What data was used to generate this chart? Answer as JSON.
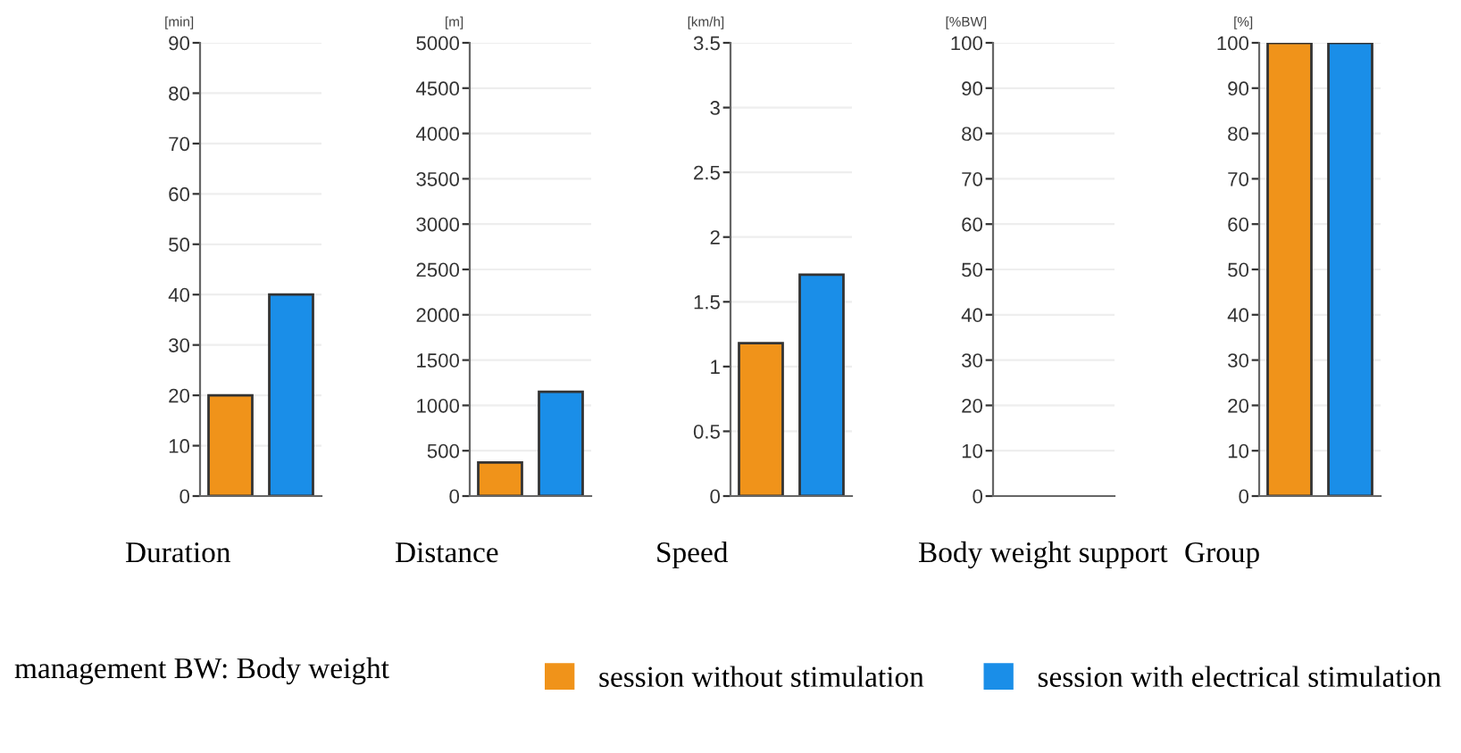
{
  "chart_data": [
    {
      "type": "bar",
      "xlabel": "Duration",
      "ylabel": "[min]",
      "categories": [
        null,
        null
      ],
      "ylim": [
        0,
        90
      ],
      "yticks": [
        0,
        10,
        20,
        30,
        40,
        50,
        60,
        70,
        80,
        90
      ],
      "grid": "y",
      "legend": "bottom",
      "annotations": [
        "management BW: Body weight"
      ],
      "series": [
        {
          "name": "session without stimulation",
          "color": "#f0931a",
          "values": [
            20,
            null
          ]
        },
        {
          "name": "session with electrical stimulation",
          "color": "#1a8ee8",
          "values": [
            null,
            40
          ]
        }
      ]
    },
    {
      "type": "bar",
      "xlabel": "Distance",
      "ylabel": "[m]",
      "categories": [
        null,
        null
      ],
      "ylim": [
        0,
        5000
      ],
      "yticks": [
        0,
        500,
        1000,
        1500,
        2000,
        2500,
        3000,
        3500,
        4000,
        4500,
        5000
      ],
      "grid": "y",
      "series": [
        {
          "color": "#f0931a",
          "values": [
            370,
            null
          ]
        },
        {
          "color": "#1a8ee8",
          "values": [
            null,
            1150
          ]
        }
      ]
    },
    {
      "type": "bar",
      "xlabel": "Speed",
      "ylabel": "[km/h]",
      "categories": [
        null,
        null
      ],
      "ylim": [
        0,
        3.5
      ],
      "yticks": [
        0,
        0.5,
        1,
        1.5,
        2,
        2.5,
        3,
        3.5
      ],
      "grid": "y",
      "series": [
        {
          "color": "#f0931a",
          "values": [
            1.18,
            null
          ]
        },
        {
          "color": "#1a8ee8",
          "values": [
            null,
            1.71
          ]
        }
      ]
    },
    {
      "type": "bar",
      "xlabel": "Body weight support",
      "ylabel": "[%BW]",
      "categories": [
        null,
        null
      ],
      "ylim": [
        0,
        100
      ],
      "yticks": [
        0,
        10,
        20,
        30,
        40,
        50,
        60,
        70,
        80,
        90,
        100
      ],
      "grid": "y",
      "series": [
        {
          "color": "#f0931a",
          "values": [
            null,
            null
          ]
        },
        {
          "color": "#1a8ee8",
          "values": [
            null,
            null
          ]
        }
      ]
    },
    {
      "type": "bar",
      "xlabel": "Group",
      "ylabel": "[%]",
      "categories": [
        null,
        null
      ],
      "ylim": [
        0,
        100
      ],
      "yticks": [
        0,
        10,
        20,
        30,
        40,
        50,
        60,
        70,
        80,
        90,
        100
      ],
      "grid": "y",
      "series": [
        {
          "color": "#f0931a",
          "values": [
            100,
            null
          ]
        },
        {
          "color": "#1a8ee8",
          "values": [
            null,
            100
          ]
        }
      ]
    }
  ]
}
